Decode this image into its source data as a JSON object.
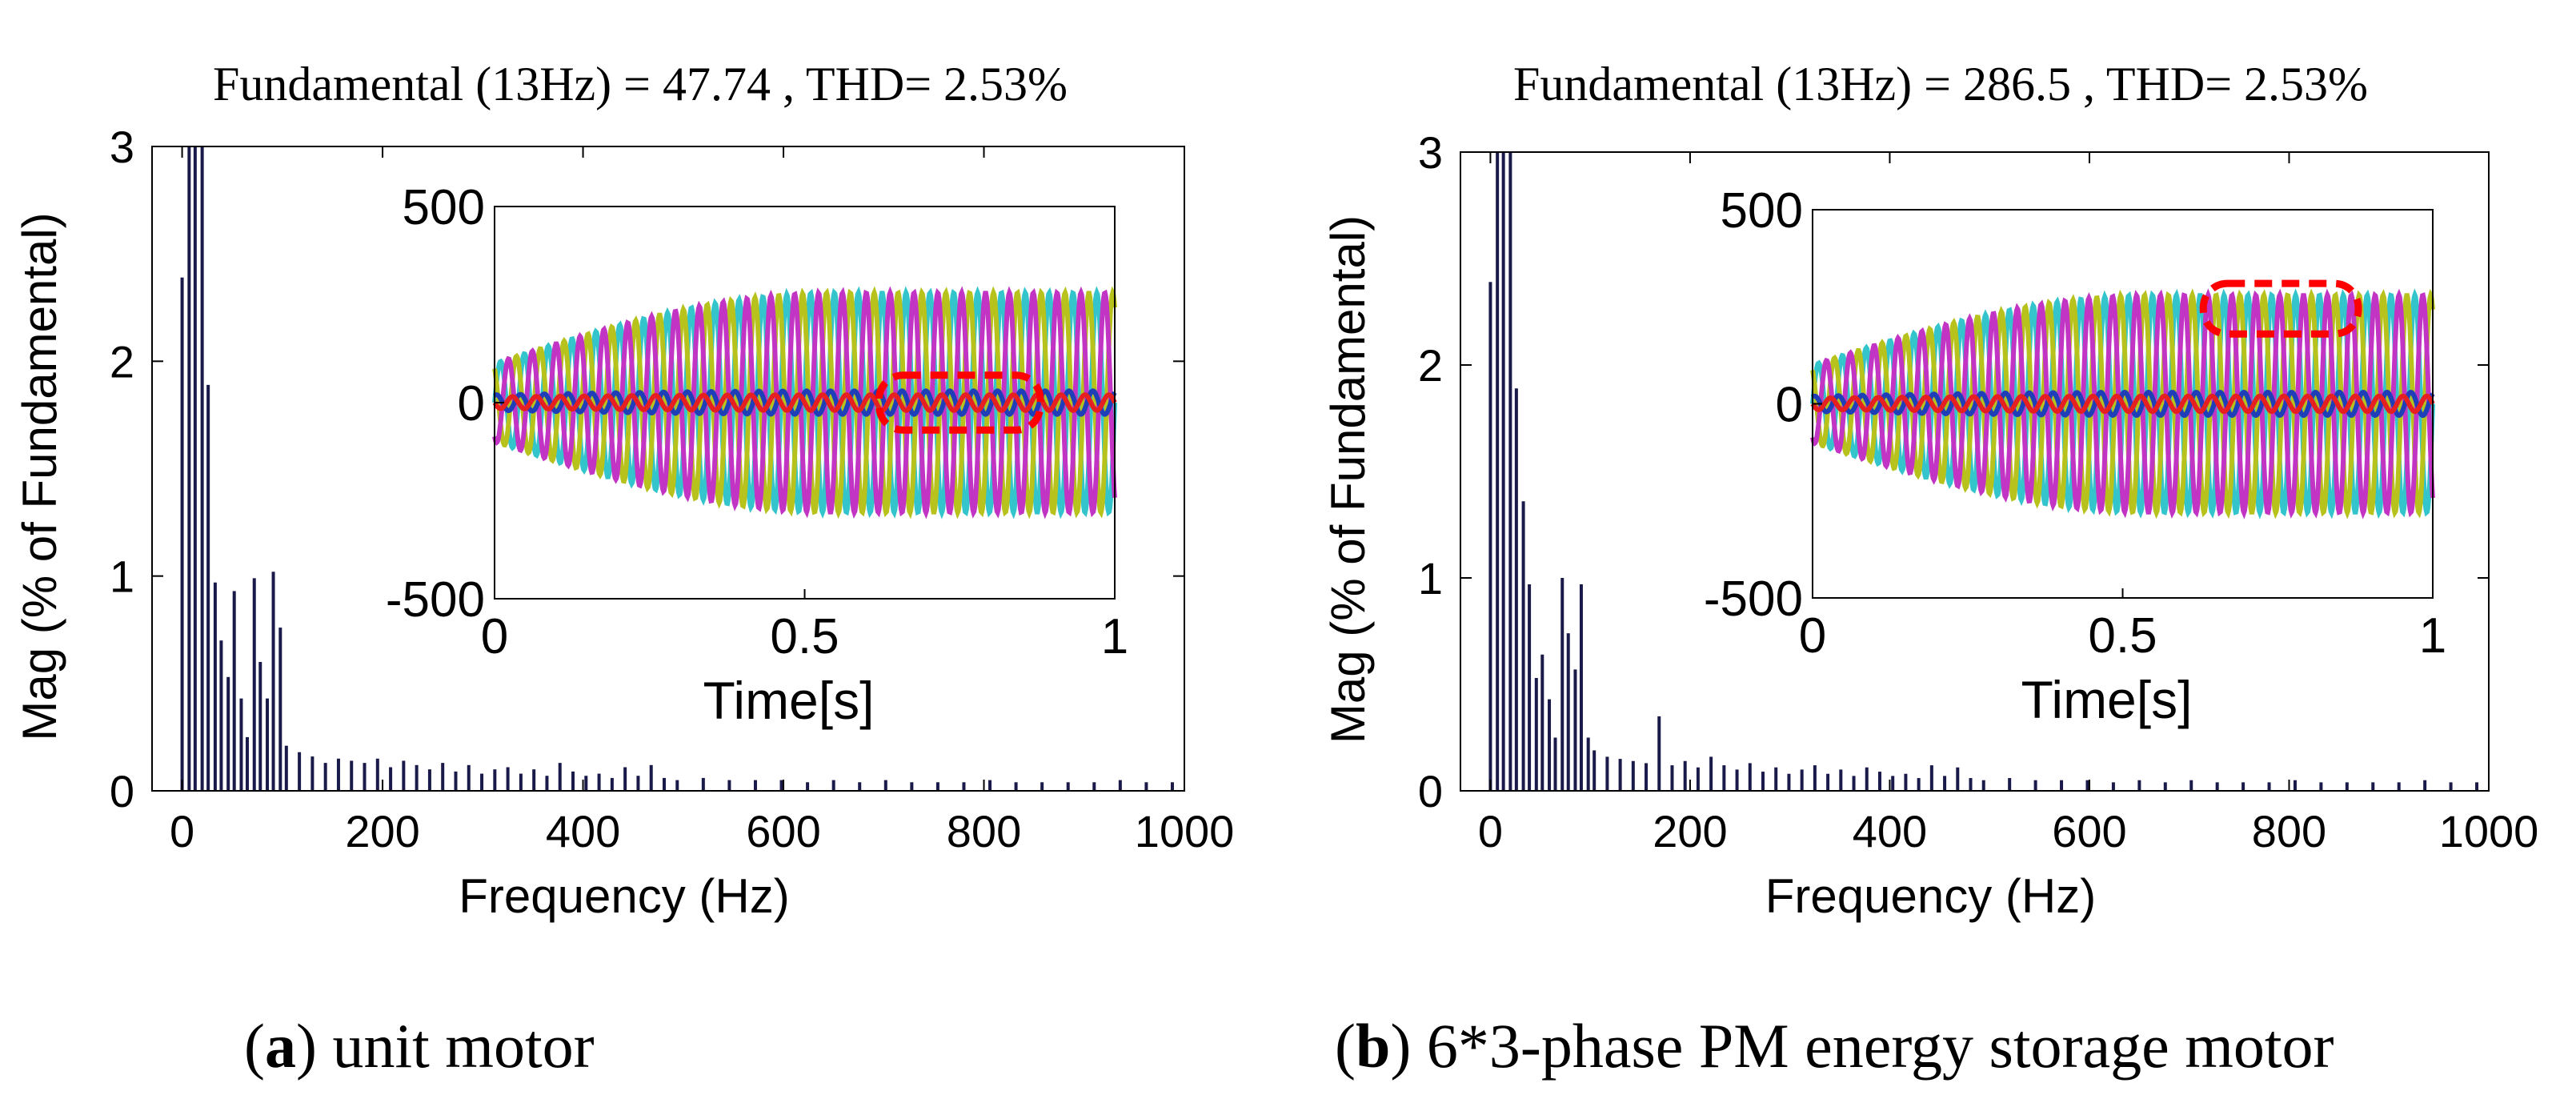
{
  "panels": [
    {
      "title": "Fundamental (13Hz) = 47.74 , THD= 2.53%",
      "caption_letter": "a",
      "caption_text": "unit motor",
      "caption_open": "(",
      "caption_close": ")"
    },
    {
      "title": "Fundamental (13Hz) = 286.5 , THD= 2.53%",
      "caption_letter": "b",
      "caption_text": "6*3-phase PM energy storage motor",
      "caption_open": "(",
      "caption_close": ")"
    }
  ],
  "chart_data": [
    {
      "type": "bar",
      "title": "Fundamental (13Hz) = 47.74 , THD= 2.53%",
      "xlabel": "Frequency (Hz)",
      "ylabel": "Mag (% of Fundamental)",
      "xlim": [
        -30,
        1000
      ],
      "ylim": [
        0,
        3
      ],
      "xticks": [
        0,
        200,
        400,
        600,
        800,
        1000
      ],
      "yticks": [
        0,
        1,
        2,
        3
      ],
      "bar_color": "#1a1a4a",
      "x": [
        0,
        7,
        13,
        20,
        26,
        33,
        39,
        46,
        52,
        59,
        65,
        72,
        78,
        85,
        91,
        98,
        104,
        117,
        130,
        143,
        156,
        169,
        182,
        195,
        208,
        221,
        234,
        247,
        260,
        273,
        286,
        299,
        312,
        325,
        338,
        351,
        364,
        377,
        390,
        403,
        416,
        429,
        442,
        455,
        468,
        481,
        494,
        520,
        546,
        572,
        598,
        624,
        650,
        676,
        702,
        728,
        754,
        780,
        806,
        832,
        858,
        884,
        910,
        936,
        962,
        988
      ],
      "values": [
        2.39,
        3.0,
        3.0,
        3.0,
        1.89,
        0.97,
        0.7,
        0.53,
        0.93,
        0.43,
        0.25,
        0.99,
        0.6,
        0.43,
        1.02,
        0.76,
        0.21,
        0.18,
        0.16,
        0.13,
        0.15,
        0.14,
        0.13,
        0.15,
        0.11,
        0.14,
        0.12,
        0.1,
        0.13,
        0.09,
        0.12,
        0.08,
        0.1,
        0.11,
        0.08,
        0.1,
        0.07,
        0.13,
        0.09,
        0.07,
        0.08,
        0.06,
        0.11,
        0.07,
        0.12,
        0.06,
        0.05,
        0.06,
        0.05,
        0.05,
        0.05,
        0.04,
        0.05,
        0.04,
        0.05,
        0.04,
        0.04,
        0.04,
        0.05,
        0.04,
        0.04,
        0.04,
        0.04,
        0.05,
        0.04,
        0.04
      ],
      "inset": {
        "type": "line",
        "xlabel": "Time[s]",
        "xlim": [
          0,
          1
        ],
        "ylim": [
          -500,
          500
        ],
        "xticks": [
          0,
          0.5,
          1
        ],
        "xtick_labels": [
          "0",
          "0.5",
          "1"
        ],
        "yticks": [
          -500,
          0,
          500
        ],
        "frequency_hz": 13,
        "series": [
          {
            "color": "#33c4cc",
            "amp_start": 100,
            "amp_end": 280,
            "phase_deg": 0
          },
          {
            "color": "#b8c21c",
            "amp_start": 100,
            "amp_end": 280,
            "phase_deg": 120
          },
          {
            "color": "#c234c4",
            "amp_start": 100,
            "amp_end": 280,
            "phase_deg": 240
          },
          {
            "color": "#1f3fb8",
            "amp_start": 20,
            "amp_end": 30,
            "phase_deg": 60
          },
          {
            "color": "#e62020",
            "amp_start": 15,
            "amp_end": 20,
            "phase_deg": 180
          }
        ],
        "highlight": {
          "color": "#ff0000",
          "x_range": [
            0.62,
            0.88
          ],
          "y_range": [
            -70,
            70
          ]
        }
      }
    },
    {
      "type": "bar",
      "title": "Fundamental (13Hz) = 286.5 , THD= 2.53%",
      "xlabel": "Frequency (Hz)",
      "ylabel": "Mag (% of Fundamental)",
      "xlim": [
        -30,
        1000
      ],
      "ylim": [
        0,
        3
      ],
      "xticks": [
        0,
        200,
        400,
        600,
        800,
        1000
      ],
      "yticks": [
        0,
        1,
        2,
        3
      ],
      "bar_color": "#1a1a4a",
      "x": [
        0,
        7,
        13,
        20,
        26,
        33,
        39,
        46,
        52,
        59,
        65,
        72,
        78,
        85,
        91,
        98,
        104,
        117,
        130,
        143,
        156,
        169,
        182,
        195,
        208,
        221,
        234,
        247,
        260,
        273,
        286,
        299,
        312,
        325,
        338,
        351,
        364,
        377,
        390,
        403,
        416,
        429,
        442,
        455,
        468,
        481,
        494,
        520,
        546,
        572,
        598,
        624,
        650,
        676,
        702,
        728,
        754,
        780,
        806,
        832,
        858,
        884,
        910,
        936,
        962,
        988
      ],
      "values": [
        2.39,
        3.0,
        3.0,
        3.0,
        1.89,
        1.36,
        0.97,
        0.53,
        0.64,
        0.43,
        0.25,
        1.0,
        0.74,
        0.57,
        0.97,
        0.25,
        0.19,
        0.16,
        0.15,
        0.14,
        0.13,
        0.35,
        0.12,
        0.14,
        0.11,
        0.16,
        0.12,
        0.1,
        0.13,
        0.09,
        0.11,
        0.08,
        0.1,
        0.12,
        0.08,
        0.1,
        0.07,
        0.11,
        0.09,
        0.07,
        0.08,
        0.06,
        0.12,
        0.07,
        0.11,
        0.06,
        0.05,
        0.06,
        0.05,
        0.05,
        0.05,
        0.04,
        0.05,
        0.04,
        0.05,
        0.04,
        0.04,
        0.04,
        0.05,
        0.04,
        0.04,
        0.04,
        0.04,
        0.05,
        0.04,
        0.04
      ],
      "inset": {
        "type": "line",
        "xlabel": "Time[s]",
        "xlim": [
          0,
          1
        ],
        "ylim": [
          -500,
          500
        ],
        "xticks": [
          0,
          0.5,
          1
        ],
        "xtick_labels": [
          "0",
          "0.5",
          "1"
        ],
        "yticks": [
          -500,
          0,
          500
        ],
        "frequency_hz": 13,
        "series": [
          {
            "color": "#33c4cc",
            "amp_start": 100,
            "amp_end": 280,
            "phase_deg": 0
          },
          {
            "color": "#b8c21c",
            "amp_start": 100,
            "amp_end": 280,
            "phase_deg": 120
          },
          {
            "color": "#c234c4",
            "amp_start": 100,
            "amp_end": 280,
            "phase_deg": 240
          },
          {
            "color": "#1f3fb8",
            "amp_start": 20,
            "amp_end": 30,
            "phase_deg": 60
          },
          {
            "color": "#e62020",
            "amp_start": 15,
            "amp_end": 20,
            "phase_deg": 180
          }
        ],
        "highlight": {
          "color": "#ff0000",
          "x_range": [
            0.63,
            0.88
          ],
          "y_range": [
            180,
            310
          ]
        }
      }
    }
  ]
}
